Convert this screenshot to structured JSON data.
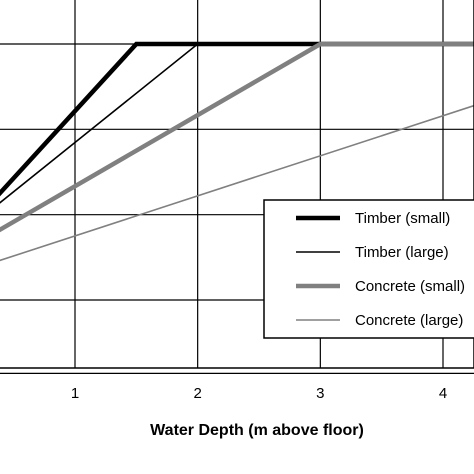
{
  "chart_data": {
    "type": "line",
    "xlabel": "Water Depth (m above floor)",
    "ylabel": "",
    "title": "",
    "xlim": [
      -0.6,
      4.3
    ],
    "ylim": [
      -1.4,
      3.6
    ],
    "x_ticks": [
      1,
      2,
      3,
      4
    ],
    "grid": true,
    "legend_position": "right",
    "series": [
      {
        "name": "Timber (small)",
        "color": "#000000",
        "style": "thick",
        "x": [
          -0.6,
          1.5,
          4.3
        ],
        "y": [
          -0.3,
          3.0,
          3.0
        ]
      },
      {
        "name": "Timber (large)",
        "color": "#000000",
        "style": "thin",
        "x": [
          -0.6,
          2.0,
          4.3
        ],
        "y": [
          0.0,
          3.0,
          3.0
        ]
      },
      {
        "name": "Concrete (small)",
        "color": "#808080",
        "style": "thick",
        "x": [
          -0.6,
          3.0,
          4.3
        ],
        "y": [
          0.0,
          3.0,
          3.0
        ]
      },
      {
        "name": "Concrete (large)",
        "color": "#808080",
        "style": "thin",
        "x": [
          -0.6,
          4.3
        ],
        "y": [
          0.0,
          2.3
        ]
      }
    ]
  }
}
